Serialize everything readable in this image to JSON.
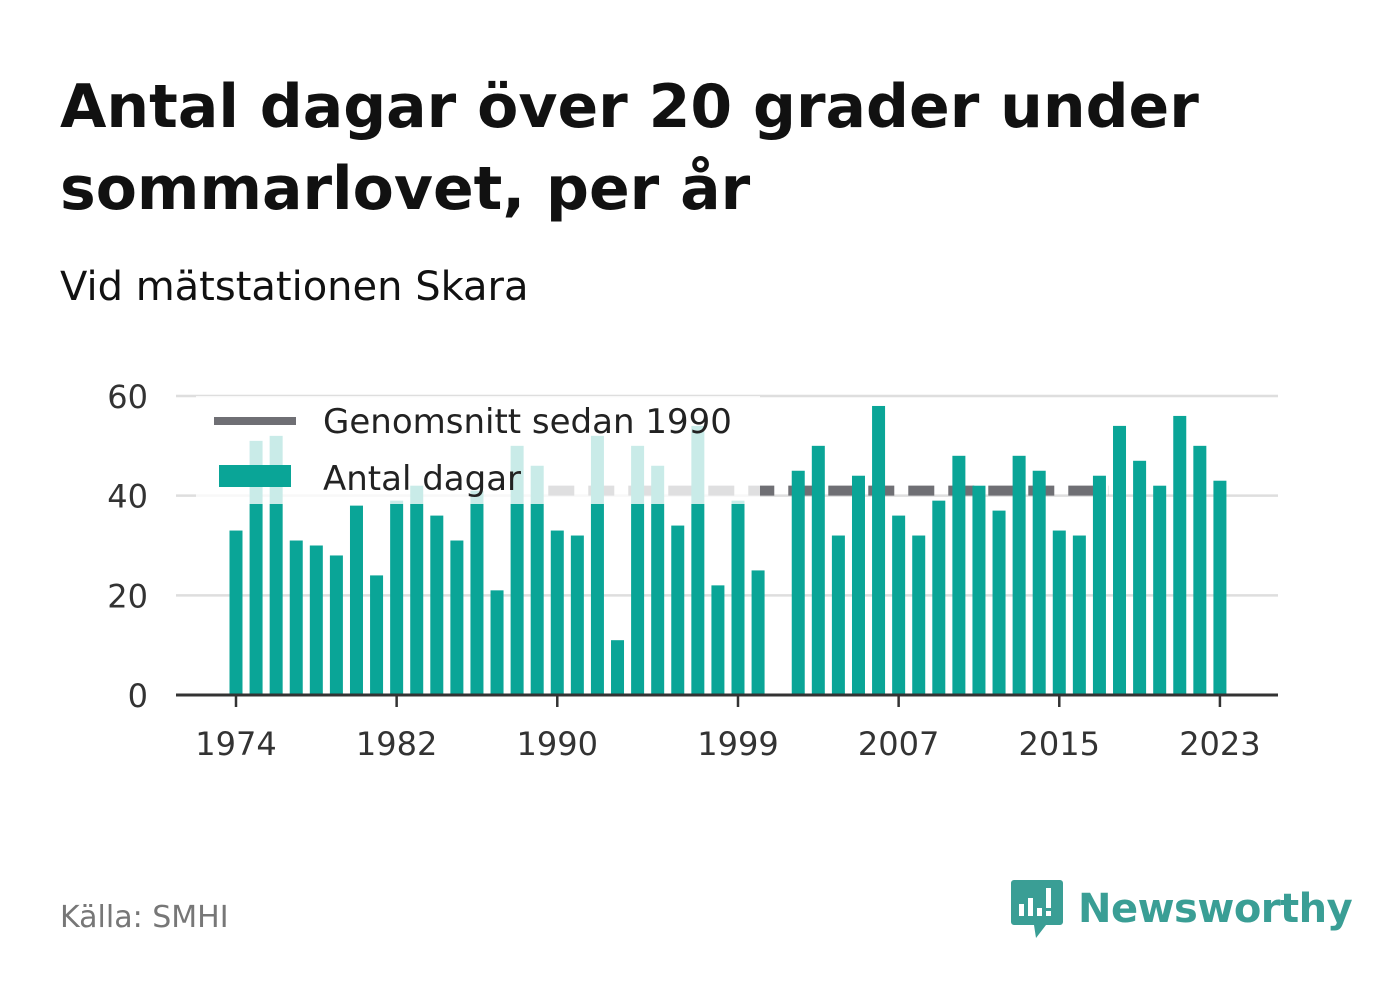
{
  "title": "Antal dagar över 20 grader under sommarlovet, per år",
  "subtitle": "Vid mätstationen Skara",
  "source": "Källa: SMHI",
  "logo": {
    "icon": "bar-chart-icon",
    "text": "Newsworthy"
  },
  "colors": {
    "bars": "#0aa597",
    "average": "#6f6f74",
    "grid": "#dedede",
    "axis": "#333333",
    "text": "#333333",
    "logo": "#3a9e95"
  },
  "chart_data": {
    "type": "bar",
    "title": "Antal dagar över 20 grader under sommarlovet, per år",
    "subtitle": "Vid mätstationen Skara",
    "xlabel": "",
    "ylabel": "",
    "ylim": [
      0,
      60
    ],
    "yticks": [
      0,
      20,
      40,
      60
    ],
    "xticks": [
      1974,
      1982,
      1990,
      1999,
      2007,
      2015,
      2023
    ],
    "grid": true,
    "legend": {
      "position": "top-left",
      "entries": [
        "Genomsnitt sedan 1990",
        "Antal dagar"
      ]
    },
    "categories": [
      1974,
      1975,
      1976,
      1977,
      1978,
      1979,
      1980,
      1981,
      1982,
      1983,
      1984,
      1985,
      1986,
      1987,
      1988,
      1989,
      1990,
      1991,
      1992,
      1993,
      1994,
      1995,
      1996,
      1997,
      1998,
      1999,
      2000,
      2001,
      2002,
      2003,
      2004,
      2005,
      2006,
      2007,
      2008,
      2009,
      2010,
      2011,
      2012,
      2013,
      2014,
      2015,
      2016,
      2017,
      2018,
      2019,
      2020,
      2021,
      2022,
      2023
    ],
    "series": [
      {
        "name": "Antal dagar",
        "type": "bar",
        "values": [
          33,
          51,
          52,
          31,
          30,
          28,
          38,
          24,
          39,
          42,
          36,
          31,
          41,
          21,
          50,
          46,
          33,
          32,
          52,
          11,
          50,
          46,
          34,
          54,
          22,
          39,
          25,
          null,
          45,
          50,
          32,
          44,
          58,
          36,
          32,
          39,
          48,
          42,
          37,
          48,
          45,
          33,
          32,
          44,
          54,
          47,
          42,
          56,
          50,
          43
        ]
      },
      {
        "name": "Genomsnitt sedan 1990",
        "type": "line",
        "x_range": [
          1990,
          2017
        ],
        "value": 41
      }
    ]
  }
}
